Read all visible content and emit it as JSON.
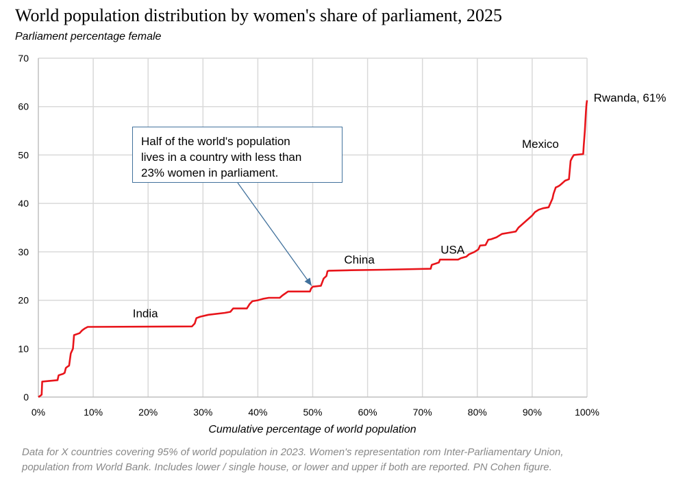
{
  "header": {
    "title": "World population distribution by women's share of parliament, 2025",
    "subtitle": "Parliament percentage female"
  },
  "callout": {
    "lines": [
      "Half of the world's population",
      "lives in a country with less than",
      "23% women in parliament."
    ],
    "target": {
      "x": 49.8,
      "y": 23
    }
  },
  "footnote": {
    "lines": [
      "Data for X countries covering 95% of world population in 2023. Women's representation rom Inter-Parliamentary Union,",
      "population from World Bank. Includes lower / single house, or lower and upper if both are reported. PN Cohen figure."
    ]
  },
  "colors": {
    "line": "#e8141a",
    "grid": "#d9d9d9",
    "axis": "#bfbfbf",
    "callout_border": "#41719c",
    "footnote": "#888888"
  },
  "chart_data": {
    "type": "line",
    "title": "World population distribution by women's share of parliament, 2025",
    "ylabel": "Parliament percentage female",
    "xlabel": "Cumulative percentage of world population",
    "xlim": [
      0,
      100
    ],
    "ylim": [
      0,
      70
    ],
    "xticks": [
      0,
      10,
      20,
      30,
      40,
      50,
      60,
      70,
      80,
      90,
      100
    ],
    "xtick_labels": [
      "0%",
      "10%",
      "20%",
      "30%",
      "40%",
      "50%",
      "60%",
      "70%",
      "80%",
      "90%",
      "100%"
    ],
    "yticks": [
      0,
      10,
      20,
      30,
      40,
      50,
      60,
      70
    ],
    "ytick_labels": [
      "0",
      "10",
      "20",
      "30",
      "40",
      "50",
      "60",
      "70"
    ],
    "grid": true,
    "series": [
      {
        "name": "Parliament percentage female",
        "x": [
          0,
          0.4,
          0.6,
          0.7,
          3.5,
          3.7,
          4.5,
          4.8,
          5.0,
          5.2,
          5.6,
          5.9,
          6.1,
          6.3,
          6.5,
          7.5,
          8.0,
          8.5,
          9.0,
          28.0,
          28.5,
          28.8,
          29.5,
          31.0,
          34.0,
          35.0,
          35.5,
          38.0,
          38.5,
          39.0,
          40.0,
          41.0,
          42.0,
          44.0,
          44.5,
          45.5,
          49.5,
          49.7,
          50.0,
          51.5,
          52.0,
          52.5,
          52.7,
          53.0,
          57.0,
          63.0,
          71.5,
          71.7,
          73.0,
          73.2,
          76.5,
          77.0,
          78.0,
          78.5,
          79.5,
          80.2,
          80.5,
          81.5,
          82.0,
          82.5,
          83.5,
          84.5,
          86.0,
          87.0,
          87.5,
          88.0,
          89.0,
          89.5,
          90.0,
          90.5,
          91.2,
          92.0,
          93.0,
          93.7,
          93.9,
          94.3,
          94.7,
          95.0,
          95.3,
          95.8,
          96.0,
          96.7,
          97.0,
          97.3,
          97.6,
          99.3,
          99.4,
          99.6,
          99.7,
          99.8,
          99.9,
          100.0
        ],
        "y": [
          0,
          0.3,
          0.5,
          3.2,
          3.5,
          4.5,
          4.8,
          5.0,
          6.0,
          6.2,
          6.5,
          9.0,
          9.5,
          10.0,
          12.8,
          13.2,
          13.8,
          14.2,
          14.5,
          14.6,
          15.2,
          16.3,
          16.6,
          17.0,
          17.4,
          17.6,
          18.3,
          18.3,
          19.2,
          19.8,
          20.0,
          20.3,
          20.5,
          20.5,
          21.0,
          21.8,
          21.8,
          22.4,
          22.8,
          23.0,
          24.5,
          25.0,
          26.0,
          26.1,
          26.2,
          26.3,
          26.5,
          27.3,
          27.8,
          28.4,
          28.4,
          28.7,
          29.0,
          29.5,
          30.0,
          30.5,
          31.3,
          31.4,
          32.5,
          32.6,
          33.0,
          33.7,
          34.0,
          34.2,
          35.0,
          35.5,
          36.5,
          37.0,
          37.5,
          38.2,
          38.7,
          39.0,
          39.2,
          41.0,
          42.0,
          43.3,
          43.5,
          43.7,
          44.0,
          44.5,
          44.7,
          45.0,
          48.8,
          49.5,
          50.0,
          50.2,
          52.0,
          55.0,
          57.0,
          59.0,
          60.5,
          61.3
        ]
      }
    ],
    "annotations": [
      {
        "text": "India",
        "x": 19.5,
        "y": 16.5,
        "anchor": "middle"
      },
      {
        "text": "China",
        "x": 58.5,
        "y": 27.6,
        "anchor": "middle"
      },
      {
        "text": "USA",
        "x": 75.5,
        "y": 29.6,
        "anchor": "middle"
      },
      {
        "text": "Mexico",
        "x": 91.5,
        "y": 51.5,
        "anchor": "middle"
      },
      {
        "text": "Rwanda, 61%",
        "x": 101.2,
        "y": 61.0,
        "anchor": "start"
      }
    ]
  }
}
